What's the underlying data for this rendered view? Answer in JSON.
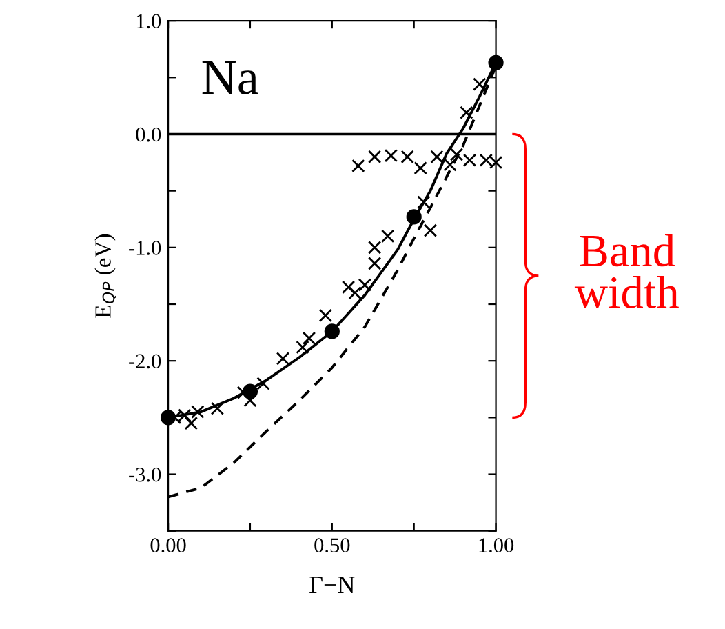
{
  "chart_data": {
    "type": "line",
    "xlabel": "Γ−N",
    "ylabel": "E$_{QP}$ (eV)",
    "xlim": [
      0,
      1
    ],
    "ylim": [
      -3.5,
      1.0
    ],
    "xticks": [
      {
        "value": 0,
        "label": "0.00"
      },
      {
        "value": 0.25,
        "label": null
      },
      {
        "value": 0.5,
        "label": "0.50"
      },
      {
        "value": 0.75,
        "label": null
      },
      {
        "value": 1.0,
        "label": "1.00"
      }
    ],
    "yticks": [
      {
        "value": -3.5,
        "label": null
      },
      {
        "value": -3.0,
        "label": "-3.0"
      },
      {
        "value": -2.5,
        "label": null
      },
      {
        "value": -2.0,
        "label": "-2.0"
      },
      {
        "value": -1.5,
        "label": null
      },
      {
        "value": -1.0,
        "label": "-1.0"
      },
      {
        "value": -0.5,
        "label": null
      },
      {
        "value": 0.0,
        "label": "0.0"
      },
      {
        "value": 0.5,
        "label": null
      },
      {
        "value": 1.0,
        "label": "1.0"
      }
    ],
    "grid": false,
    "annotations": [
      "Na",
      "Band width"
    ],
    "ref_lines": [
      {
        "axis": "y",
        "value": 0,
        "color": "#000000",
        "line_style": "solid"
      }
    ],
    "series": [
      {
        "color": "#000000",
        "line_style": "solid",
        "marker": "none",
        "x": [
          0,
          0.1,
          0.2,
          0.3,
          0.4,
          0.5,
          0.6,
          0.7,
          0.75,
          0.8,
          0.85,
          0.9,
          0.95,
          1.0
        ],
        "values": [
          -2.5,
          -2.45,
          -2.33,
          -2.17,
          -1.97,
          -1.74,
          -1.42,
          -1.02,
          -0.75,
          -0.5,
          -0.17,
          0.05,
          0.33,
          0.63
        ]
      },
      {
        "color": "#000000",
        "line_style": "dashed",
        "marker": "none",
        "x": [
          0,
          0.1,
          0.2,
          0.3,
          0.4,
          0.5,
          0.6,
          0.7,
          0.75,
          0.8,
          0.9,
          1.0
        ],
        "values": [
          -3.2,
          -3.12,
          -2.9,
          -2.62,
          -2.35,
          -2.06,
          -1.7,
          -1.2,
          -0.92,
          -0.65,
          -0.1,
          0.6
        ]
      },
      {
        "type": "scatter",
        "color": "#000000",
        "marker": "cross",
        "x": [
          0.02,
          0.05,
          0.07,
          0.09,
          0.15,
          0.23,
          0.25,
          0.29,
          0.35,
          0.41,
          0.43,
          0.48,
          0.55,
          0.57,
          0.6,
          0.63,
          0.63,
          0.67,
          0.78,
          0.8,
          0.58,
          0.63,
          0.68,
          0.73,
          0.77,
          0.82,
          0.86,
          0.88,
          0.92,
          0.97,
          1.0,
          0.91,
          0.95
        ],
        "values": [
          -2.5,
          -2.48,
          -2.55,
          -2.45,
          -2.42,
          -2.28,
          -2.35,
          -2.2,
          -1.98,
          -1.88,
          -1.8,
          -1.6,
          -1.35,
          -1.4,
          -1.33,
          -1.14,
          -1.0,
          -0.9,
          -0.6,
          -0.85,
          -0.28,
          -0.2,
          -0.19,
          -0.2,
          -0.3,
          -0.2,
          -0.27,
          -0.18,
          -0.23,
          -0.23,
          -0.25,
          0.19,
          0.44
        ]
      },
      {
        "type": "scatter",
        "color": "#000000",
        "marker": "circle",
        "x": [
          0,
          0.25,
          0.5,
          0.75,
          1.0
        ],
        "values": [
          -2.5,
          -2.27,
          -1.74,
          -0.73,
          0.63
        ]
      }
    ]
  }
}
